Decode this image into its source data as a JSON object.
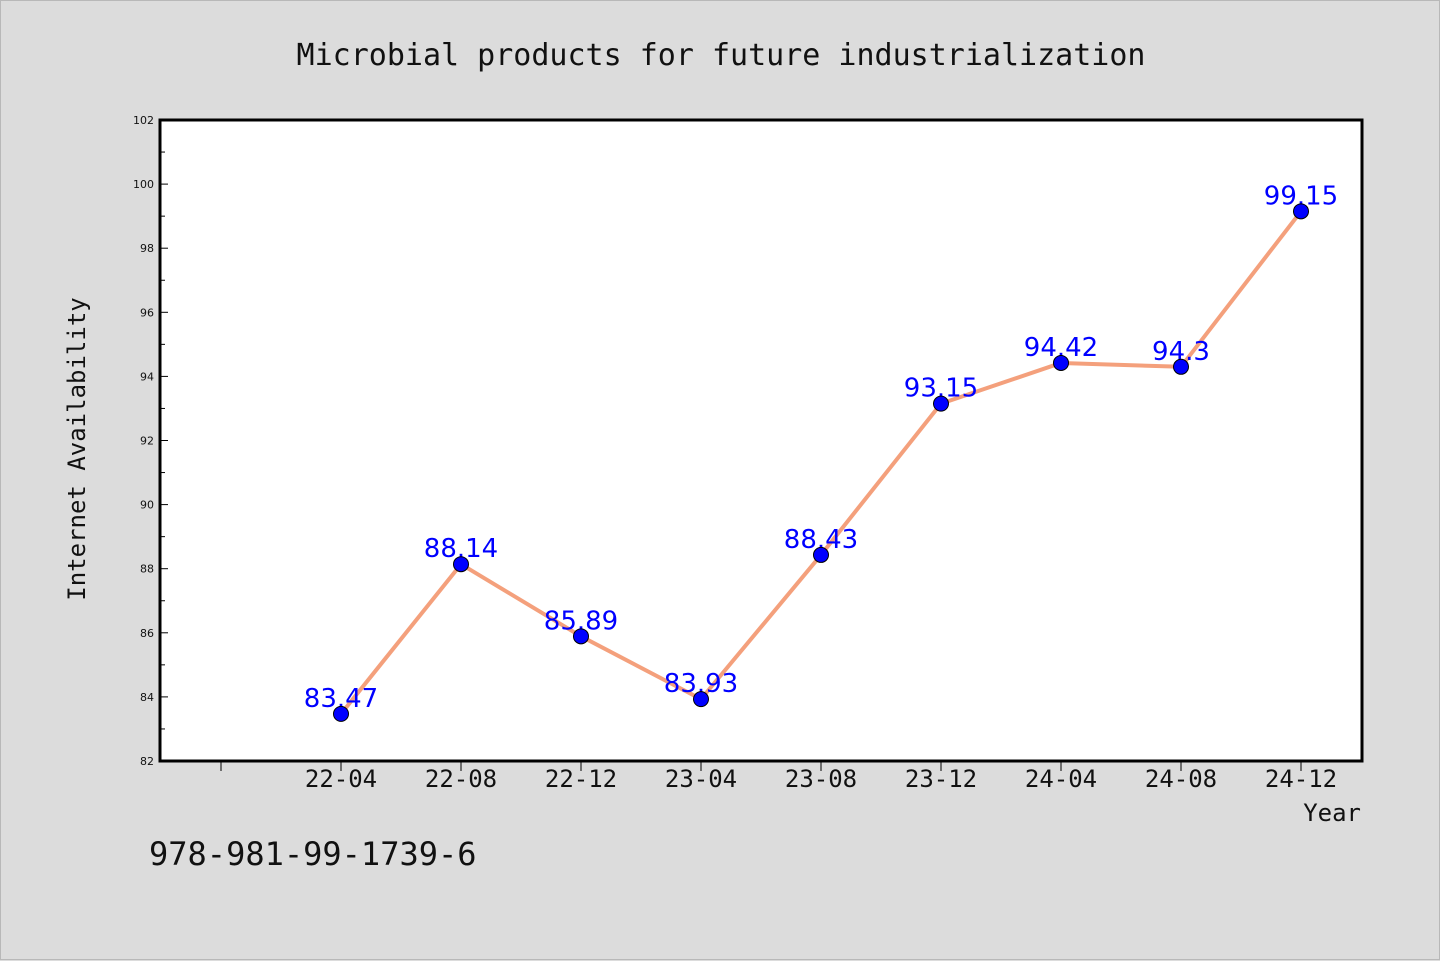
{
  "chart_data": {
    "type": "line",
    "title": "Microbial products for future industrialization",
    "xlabel": "Year",
    "ylabel": "Internet Availability",
    "categories": [
      "22-04",
      "22-08",
      "22-12",
      "23-04",
      "23-08",
      "23-12",
      "24-04",
      "24-08",
      "24-12"
    ],
    "series": [
      {
        "values": [
          83.47,
          88.14,
          85.89,
          83.93,
          88.43,
          93.15,
          94.42,
          94.3,
          99.15
        ],
        "labels": [
          "83.47",
          "88.14",
          "85.89",
          "83.93",
          "88.43",
          "93.15",
          "94.42",
          "94.3",
          "99.15"
        ]
      }
    ],
    "ylim": [
      82,
      102
    ],
    "yticks": [
      "82",
      "84",
      "86",
      "88",
      "90",
      "92",
      "94",
      "96",
      "98",
      "100",
      "102"
    ],
    "grid": false,
    "line_color": "#f4a07c",
    "marker_color": "#0000ff",
    "label_color": "#0000ff"
  },
  "footer_text": "978-981-99-1739-6"
}
